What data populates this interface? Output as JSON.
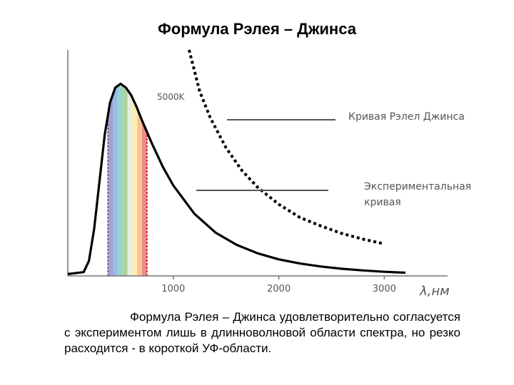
{
  "page": {
    "title": "Формула Рэлея – Джинса",
    "caption": "Формула Рэлея – Джинса удовлетворительно согласуется с экспериментом лишь в длинноволновой области спектра, но резко расходится - в короткой УФ-области."
  },
  "chart_data": {
    "type": "line",
    "title": "Формула Рэлея – Джинса",
    "xlabel": "λ,нм",
    "ylabel": "",
    "xlim": [
      0,
      3600
    ],
    "ylim": [
      0,
      1.2
    ],
    "xticks": [
      1000,
      2000,
      3000
    ],
    "grid": false,
    "annotations": {
      "temperature": "5000K",
      "rj_label": "Кривая Рэлел Джинса",
      "exp_label": "Экспериментальная кривая",
      "exp_label_line1": "Экспериментальная",
      "exp_label_line2": "кривая"
    },
    "visible_band": {
      "from": 380,
      "to": 750
    },
    "series": [
      {
        "name": "Экспериментальная кривая",
        "style": "solid",
        "color": "#000000",
        "x": [
          0,
          150,
          200,
          250,
          300,
          350,
          400,
          450,
          500,
          550,
          600,
          650,
          700,
          800,
          900,
          1000,
          1200,
          1400,
          1600,
          1800,
          2000,
          2200,
          2400,
          2600,
          2800,
          3000,
          3200
        ],
        "y": [
          0.01,
          0.02,
          0.08,
          0.25,
          0.5,
          0.75,
          0.92,
          1.0,
          1.02,
          1.0,
          0.96,
          0.9,
          0.83,
          0.7,
          0.58,
          0.48,
          0.33,
          0.23,
          0.165,
          0.12,
          0.088,
          0.066,
          0.05,
          0.038,
          0.029,
          0.022,
          0.017
        ]
      },
      {
        "name": "Кривая Рэлел Джинса",
        "style": "dotted",
        "color": "#000000",
        "x": [
          1150,
          1250,
          1350,
          1500,
          1650,
          1800,
          2000,
          2200,
          2400,
          2600,
          2800,
          3000
        ],
        "y": [
          1.2,
          0.98,
          0.84,
          0.68,
          0.56,
          0.47,
          0.38,
          0.31,
          0.265,
          0.225,
          0.195,
          0.17
        ]
      }
    ]
  }
}
